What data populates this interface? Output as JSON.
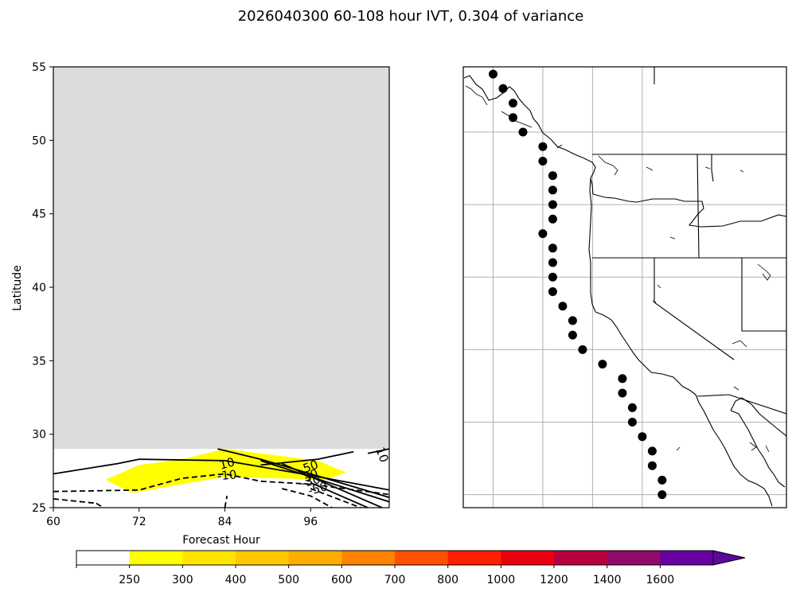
{
  "figure": {
    "title": "2026040300 60-108 hour IVT, 0.304 of variance"
  },
  "chart_data": [
    {
      "type": "contour",
      "panel": "hovmoller",
      "xlabel": "Forecast Hour",
      "ylabel": "Latitude",
      "xlim": [
        60,
        107
      ],
      "ylim": [
        25,
        55
      ],
      "xticks": [
        60,
        72,
        84,
        96
      ],
      "yticks": [
        25,
        30,
        35,
        40,
        45,
        50,
        55
      ],
      "no_data_color": "#dcdcdc",
      "no_data_region": {
        "lat_min": 29,
        "lat_max": 55,
        "hour_min": 60,
        "hour_max": 107
      },
      "filled_regions": [
        {
          "color": "#ffff00",
          "level": 250,
          "polygon": [
            [
              67.3,
              26.9
            ],
            [
              71,
              26
            ],
            [
              84,
              27.1
            ],
            [
              98,
              26.9
            ],
            [
              101,
              27.4
            ],
            [
              97,
              28.2
            ],
            [
              84,
              29.0
            ],
            [
              78,
              28.3
            ],
            [
              72,
              27.9
            ],
            [
              67.3,
              26.9
            ]
          ]
        }
      ],
      "contour_lines": [
        {
          "style": "solid",
          "points": [
            [
              60,
              27.3
            ],
            [
              69,
              28.0
            ],
            [
              72,
              28.3
            ],
            [
              84,
              28.2
            ],
            [
              96,
              27.2
            ],
            [
              107,
              26.2
            ]
          ]
        },
        {
          "style": "solid",
          "points": [
            [
              83,
              29.0
            ],
            [
              89,
              28.3
            ],
            [
              96,
              27.3
            ],
            [
              107,
              25.7
            ]
          ]
        },
        {
          "style": "solid",
          "points": [
            [
              89,
              28.2
            ],
            [
              96,
              27.1
            ],
            [
              107,
              25.4
            ]
          ]
        },
        {
          "style": "solid",
          "points": [
            [
              92,
              28.0
            ],
            [
              97,
              26.9
            ],
            [
              106,
              25.0
            ]
          ]
        },
        {
          "style": "solid",
          "points": [
            [
              89,
              27.9
            ],
            [
              97,
              28.3
            ],
            [
              102,
              28.8
            ]
          ]
        },
        {
          "style": "solid",
          "points": [
            [
              104,
              28.7
            ],
            [
              107,
              29.0
            ]
          ]
        },
        {
          "style": "solid",
          "points": [
            [
              96,
              26.7
            ],
            [
              104,
              25.0
            ]
          ]
        },
        {
          "style": "dashed",
          "points": [
            [
              60,
              26.1
            ],
            [
              72,
              26.2
            ],
            [
              78,
              27.0
            ],
            [
              84,
              27.3
            ],
            [
              89,
              26.8
            ],
            [
              96,
              26.6
            ],
            [
              107,
              25.9
            ]
          ]
        },
        {
          "style": "dashed",
          "points": [
            [
              60,
              25.6
            ],
            [
              66,
              25.3
            ]
          ]
        },
        {
          "style": "dashed",
          "points": [
            [
              66,
              25.3
            ],
            [
              67,
              25.0
            ]
          ]
        },
        {
          "style": "dashed",
          "points": [
            [
              84,
              25.0
            ],
            [
              84.3,
              25.8
            ]
          ]
        },
        {
          "style": "dashed",
          "points": [
            [
              92,
              26.3
            ],
            [
              96,
              25.8
            ],
            [
              99,
              25.0
            ]
          ]
        },
        {
          "style": "dashed",
          "points": [
            [
              96,
              26.3
            ],
            [
              103,
              25.0
            ]
          ]
        }
      ],
      "contour_labels": [
        {
          "text": "10",
          "hour": 84.3,
          "lat": 28.0,
          "rotation": -15
        },
        {
          "text": "-10",
          "hour": 84.3,
          "lat": 27.2,
          "rotation": -5
        },
        {
          "text": "50",
          "hour": 96.0,
          "lat": 27.8,
          "rotation": -20
        },
        {
          "text": "30",
          "hour": 96.0,
          "lat": 27.2,
          "rotation": -20
        },
        {
          "text": "-30",
          "hour": 96.0,
          "lat": 26.8,
          "rotation": -15
        },
        {
          "text": "-50",
          "hour": 97.0,
          "lat": 26.3,
          "rotation": -15
        },
        {
          "text": "10",
          "hour": 106.0,
          "lat": 28.6,
          "rotation": 70
        }
      ]
    },
    {
      "type": "map",
      "panel": "station-map",
      "lon_range": [
        -135,
        -102.5
      ],
      "lat_range": [
        24.1,
        54.5
      ],
      "gridlines_lon": [
        -132,
        -127,
        -122,
        -117
      ],
      "gridlines_lat": [
        25,
        30,
        35,
        40,
        45,
        50,
        55
      ],
      "station_points": [
        [
          -132.0,
          54.0
        ],
        [
          -131.0,
          53.0
        ],
        [
          -130.0,
          52.0
        ],
        [
          -130.0,
          51.0
        ],
        [
          -129.0,
          50.0
        ],
        [
          -127.0,
          49.0
        ],
        [
          -127.0,
          48.0
        ],
        [
          -126.0,
          47.0
        ],
        [
          -126.0,
          46.0
        ],
        [
          -126.0,
          45.0
        ],
        [
          -126.0,
          44.0
        ],
        [
          -127.0,
          43.0
        ],
        [
          -126.0,
          42.0
        ],
        [
          -126.0,
          41.0
        ],
        [
          -126.0,
          40.0
        ],
        [
          -126.0,
          39.0
        ],
        [
          -125.0,
          38.0
        ],
        [
          -124.0,
          37.0
        ],
        [
          -124.0,
          36.0
        ],
        [
          -123.0,
          35.0
        ],
        [
          -121.0,
          34.0
        ],
        [
          -119.0,
          33.0
        ],
        [
          -119.0,
          32.0
        ],
        [
          -118.0,
          31.0
        ],
        [
          -118.0,
          30.0
        ],
        [
          -117.0,
          29.0
        ],
        [
          -116.0,
          28.0
        ],
        [
          -116.0,
          27.0
        ],
        [
          -115.0,
          26.0
        ],
        [
          -115.0,
          25.0
        ]
      ]
    },
    {
      "type": "colorbar",
      "ticks": [
        "250",
        "300",
        "400",
        "500",
        "600",
        "700",
        "800",
        "1000",
        "1200",
        "1400",
        "1600"
      ],
      "colors": [
        "#ffffff",
        "#ffff00",
        "#ffe400",
        "#ffc800",
        "#ffad00",
        "#ff8200",
        "#ff5000",
        "#ff1e00",
        "#eb0010",
        "#b8003a",
        "#900a68",
        "#6600a0",
        "#5a0a96"
      ],
      "extend": "max"
    }
  ]
}
